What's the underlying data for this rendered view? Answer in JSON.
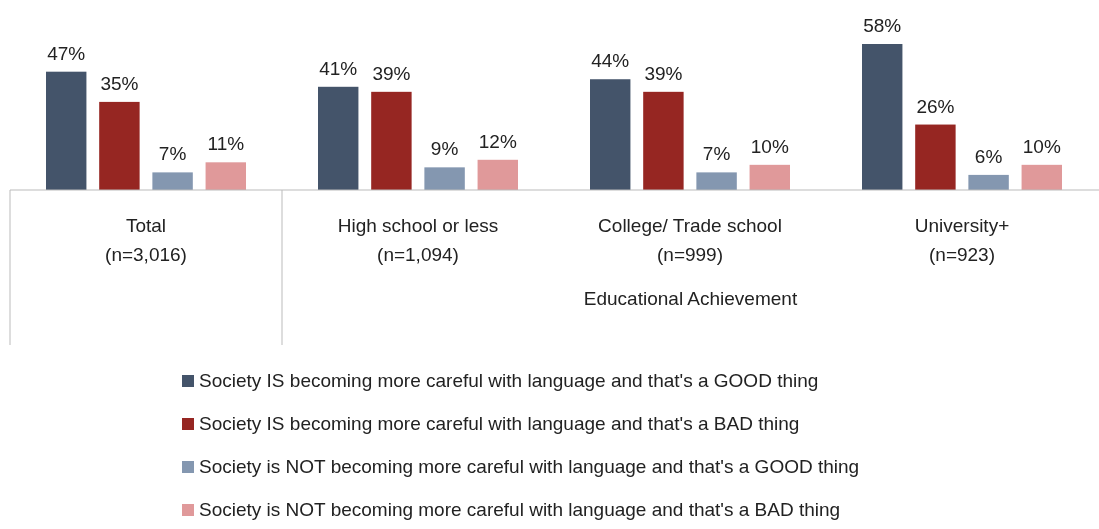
{
  "chart_data": {
    "type": "bar",
    "categories": [
      "Total\n(n=3,016)",
      "High school or less\n(n=1,094)",
      "College/ Trade school\n(n=999)",
      "University+\n(n=923)"
    ],
    "series": [
      {
        "name": "Society IS becoming more careful with language and that's a GOOD thing",
        "color": "#44546a",
        "values": [
          47,
          41,
          44,
          58
        ],
        "value_labels": [
          "47%",
          "41%",
          "44%",
          "58%"
        ]
      },
      {
        "name": "Society IS becoming more careful with language and that's a BAD thing",
        "color": "#962622",
        "values": [
          35,
          39,
          39,
          26
        ],
        "value_labels": [
          "35%",
          "39%",
          "39%",
          "26%"
        ]
      },
      {
        "name": "Society is NOT becoming more careful with language and that's a GOOD thing",
        "color": "#8497b0",
        "values": [
          7,
          9,
          7,
          6
        ],
        "value_labels": [
          "7%",
          "9%",
          "7%",
          "6%"
        ]
      },
      {
        "name": "Society is NOT becoming more careful with language and that's a BAD thing",
        "color": "#e0999a",
        "values": [
          11,
          12,
          10,
          10
        ],
        "value_labels": [
          "11%",
          "12%",
          "10%",
          "10%"
        ]
      }
    ],
    "annotations": [
      "Educational Achievement"
    ],
    "legend": "bottom",
    "grid": false
  }
}
